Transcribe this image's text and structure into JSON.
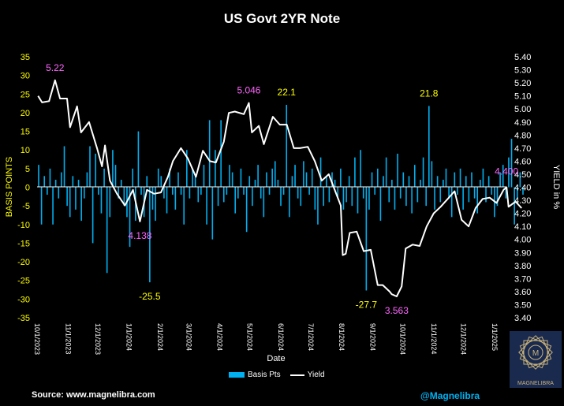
{
  "chart_data": {
    "type": "bar+line",
    "title": "US Govt 2YR Note",
    "xlabel": "Date",
    "ylabel_left": "BASIS POINTS",
    "ylabel_right": "YIELD in %",
    "ylim_left": [
      -35,
      35
    ],
    "ylim_right": [
      3.4,
      5.4
    ],
    "yticks_left": [
      "35",
      "30",
      "25",
      "20",
      "15",
      "10",
      "5",
      "0",
      "-5",
      "-10",
      "-15",
      "-20",
      "-25",
      "-30",
      "-35"
    ],
    "yticks_right": [
      "5.40",
      "5.30",
      "5.20",
      "5.10",
      "5.00",
      "4.90",
      "4.80",
      "4.70",
      "4.60",
      "4.50",
      "4.40",
      "4.30",
      "4.20",
      "4.10",
      "4.00",
      "3.90",
      "3.80",
      "3.70",
      "3.60",
      "3.50",
      "3.40"
    ],
    "xticks": [
      "10/1/2023",
      "11/1/2023",
      "12/1/2023",
      "1/1/2024",
      "2/1/2024",
      "3/1/2024",
      "4/1/2024",
      "5/1/2024",
      "6/1/2024",
      "7/1/2024",
      "8/1/2024",
      "9/1/2024",
      "10/1/2024",
      "11/1/2024",
      "12/1/2024",
      "1/1/2025"
    ],
    "x_start": "10/1/2023",
    "x_end": "1/31/2025",
    "legend": [
      "Basis Pts",
      "Yield"
    ],
    "legend_position": "bottom",
    "colors": {
      "bars": "#00b0f0",
      "line": "#ffffff",
      "left_axis": "#ffff00",
      "yield_annot": "#ff66ff",
      "bp_annot": "#ffff00"
    },
    "series": [
      {
        "name": "Yield",
        "type": "line",
        "points": [
          [
            "10/2/2023",
            5.1
          ],
          [
            "10/6/2023",
            5.05
          ],
          [
            "10/13/2023",
            5.06
          ],
          [
            "10/19/2023",
            5.22
          ],
          [
            "10/24/2023",
            5.08
          ],
          [
            "10/31/2023",
            5.08
          ],
          [
            "11/3/2023",
            4.86
          ],
          [
            "11/10/2023",
            5.02
          ],
          [
            "11/14/2023",
            4.82
          ],
          [
            "11/22/2023",
            4.9
          ],
          [
            "11/30/2023",
            4.7
          ],
          [
            "12/5/2023",
            4.56
          ],
          [
            "12/8/2023",
            4.72
          ],
          [
            "12/13/2023",
            4.45
          ],
          [
            "12/20/2023",
            4.35
          ],
          [
            "12/28/2023",
            4.26
          ],
          [
            "1/5/2024",
            4.38
          ],
          [
            "1/12/2024",
            4.138
          ],
          [
            "1/19/2024",
            4.38
          ],
          [
            "1/26/2024",
            4.35
          ],
          [
            "2/2/2024",
            4.36
          ],
          [
            "2/9/2024",
            4.48
          ],
          [
            "2/14/2024",
            4.6
          ],
          [
            "2/22/2024",
            4.7
          ],
          [
            "2/29/2024",
            4.62
          ],
          [
            "3/8/2024",
            4.48
          ],
          [
            "3/15/2024",
            4.68
          ],
          [
            "3/22/2024",
            4.6
          ],
          [
            "3/28/2024",
            4.59
          ],
          [
            "4/5/2024",
            4.75
          ],
          [
            "4/10/2024",
            4.97
          ],
          [
            "4/16/2024",
            4.98
          ],
          [
            "4/25/2024",
            4.96
          ],
          [
            "4/30/2024",
            5.046
          ],
          [
            "5/3/2024",
            4.82
          ],
          [
            "5/10/2024",
            4.87
          ],
          [
            "5/15/2024",
            4.73
          ],
          [
            "5/24/2024",
            4.94
          ],
          [
            "5/31/2024",
            4.88
          ],
          [
            "6/7/2024",
            4.88
          ],
          [
            "6/14/2024",
            4.7
          ],
          [
            "6/20/2024",
            4.7
          ],
          [
            "6/28/2024",
            4.71
          ],
          [
            "7/5/2024",
            4.6
          ],
          [
            "7/12/2024",
            4.45
          ],
          [
            "7/19/2024",
            4.5
          ],
          [
            "7/26/2024",
            4.36
          ],
          [
            "7/31/2024",
            4.26
          ],
          [
            "8/2/2024",
            3.88
          ],
          [
            "8/5/2024",
            3.89
          ],
          [
            "8/9/2024",
            4.05
          ],
          [
            "8/16/2024",
            4.06
          ],
          [
            "8/23/2024",
            3.91
          ],
          [
            "8/30/2024",
            3.92
          ],
          [
            "9/6/2024",
            3.65
          ],
          [
            "9/11/2024",
            3.65
          ],
          [
            "9/18/2024",
            3.6
          ],
          [
            "9/20/2024",
            3.58
          ],
          [
            "9/25/2024",
            3.563
          ],
          [
            "9/30/2024",
            3.64
          ],
          [
            "10/4/2024",
            3.93
          ],
          [
            "10/11/2024",
            3.96
          ],
          [
            "10/18/2024",
            3.95
          ],
          [
            "10/25/2024",
            4.1
          ],
          [
            "11/1/2024",
            4.2
          ],
          [
            "11/8/2024",
            4.25
          ],
          [
            "11/15/2024",
            4.31
          ],
          [
            "11/22/2024",
            4.37
          ],
          [
            "11/29/2024",
            4.15
          ],
          [
            "12/6/2024",
            4.1
          ],
          [
            "12/13/2024",
            4.24
          ],
          [
            "12/20/2024",
            4.31
          ],
          [
            "12/27/2024",
            4.32
          ],
          [
            "1/3/2025",
            4.28
          ],
          [
            "1/10/2025",
            4.38
          ],
          [
            "1/13/2025",
            4.4
          ],
          [
            "1/15/2025",
            4.25
          ],
          [
            "1/22/2025",
            4.29
          ],
          [
            "1/28/2025",
            4.24
          ]
        ]
      },
      {
        "name": "Basis Pts",
        "type": "bar",
        "values": [
          6,
          -10,
          3,
          -2,
          5,
          -10,
          2,
          -3,
          4,
          11,
          -5,
          -8,
          3,
          -6,
          2,
          -9,
          -3,
          4,
          11,
          -15,
          9,
          -2,
          -7,
          5,
          -23,
          -8,
          10,
          6,
          -3,
          2,
          -5,
          -8,
          -16,
          5,
          -9,
          15,
          -2,
          -8,
          3,
          -25.5,
          -6,
          -9,
          5,
          3,
          -3,
          -7,
          5,
          -2,
          -6,
          4,
          -2,
          -10,
          10,
          -3,
          5,
          3,
          -4,
          -2,
          6,
          -10,
          18,
          -14,
          10,
          -5,
          18,
          -4,
          -2,
          6,
          4,
          -7,
          -3,
          5,
          -2,
          -12,
          3,
          -5,
          2,
          6,
          -3,
          -8,
          4,
          -2,
          5,
          7,
          2,
          -5,
          -2,
          22.1,
          -8,
          3,
          6,
          -3,
          -5,
          7,
          4,
          -2,
          5,
          -6,
          -10,
          8,
          -5,
          3,
          -4,
          4,
          2,
          -3,
          5,
          -6,
          -4,
          3,
          -5,
          8,
          -7,
          10,
          -3,
          -27.7,
          -6,
          4,
          -2,
          5,
          -9,
          3,
          8,
          -4,
          2,
          -6,
          9,
          -3,
          4,
          -5,
          3,
          -7,
          6,
          -4,
          2,
          8,
          -5,
          21.8,
          7,
          -6,
          3,
          -4,
          2,
          5,
          -3,
          -8,
          4,
          -2,
          5,
          -6,
          3,
          -4,
          4,
          -3,
          -7,
          2,
          5,
          -4,
          3,
          -2,
          -8,
          -5,
          4,
          6,
          -3,
          8,
          13,
          -10,
          -3,
          4,
          -2
        ]
      }
    ],
    "annotations": [
      {
        "series": "Yield",
        "date": "10/19/2023",
        "value": 5.22,
        "text": "5.22"
      },
      {
        "series": "Yield",
        "date": "1/12/2024",
        "value": 4.138,
        "text": "4.138"
      },
      {
        "series": "Yield",
        "date": "4/30/2024",
        "value": 5.046,
        "text": "5.046"
      },
      {
        "series": "Yield",
        "date": "9/25/2024",
        "value": 3.563,
        "text": "3.563"
      },
      {
        "series": "Yield",
        "date": "1/13/2025",
        "value": 4.4,
        "text": "4.400"
      },
      {
        "series": "Basis Pts",
        "value": -25.5,
        "text": "-25.5"
      },
      {
        "series": "Basis Pts",
        "value": 22.1,
        "text": "22.1"
      },
      {
        "series": "Basis Pts",
        "value": -27.7,
        "text": "-27.7"
      },
      {
        "series": "Basis Pts",
        "value": 21.8,
        "text": "21.8"
      }
    ]
  },
  "footer": {
    "source": "Source: www.magnelibra.com",
    "handle": "@Magnelibra",
    "logo_text": "MAGNELIBRA"
  }
}
